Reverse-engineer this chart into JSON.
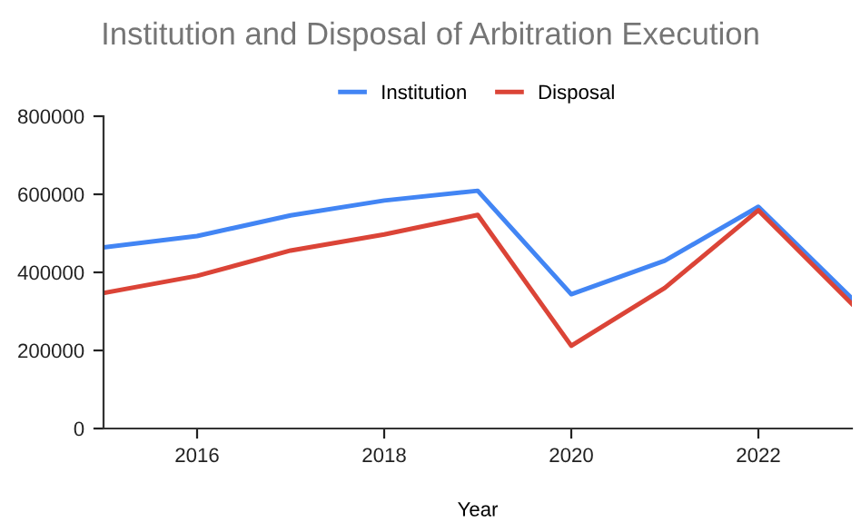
{
  "chart_data": {
    "type": "line",
    "title": "Institution and Disposal of Arbitration Execution",
    "xlabel": "Year",
    "x": [
      2015,
      2016,
      2017,
      2018,
      2019,
      2020,
      2021,
      2022,
      2023
    ],
    "series": [
      {
        "name": "Institution",
        "color": "#4285f4",
        "values": [
          464000,
          493000,
          546000,
          584000,
          609000,
          344000,
          430000,
          568000,
          333000
        ]
      },
      {
        "name": "Disposal",
        "color": "#db4437",
        "values": [
          347000,
          391000,
          456000,
          497000,
          547000,
          212000,
          360000,
          559000,
          319000
        ]
      }
    ],
    "xlim": [
      2015,
      2023
    ],
    "xticks": [
      2016,
      2018,
      2020,
      2022
    ],
    "ylim": [
      0,
      800000
    ],
    "yticks": [
      0,
      200000,
      400000,
      600000,
      800000
    ],
    "grid": false,
    "legend": "top",
    "marker": "none",
    "line_style": "solid"
  }
}
